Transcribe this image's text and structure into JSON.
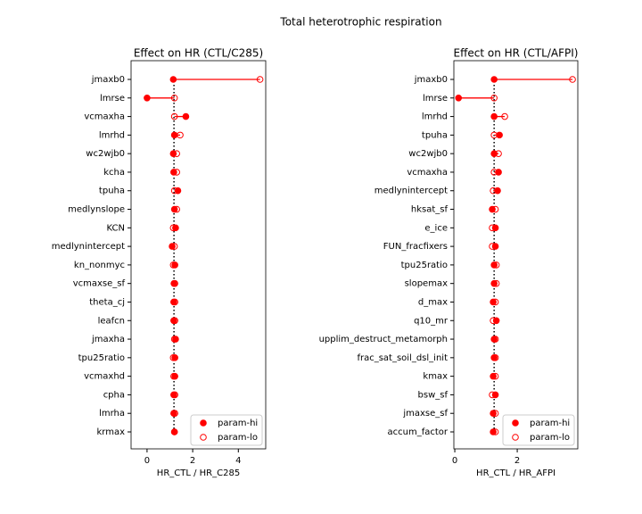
{
  "title": "Total heterotrophic respiration",
  "chart_data": [
    {
      "type": "dumbbell",
      "title": "Effect on HR (CTL/C285)",
      "xlabel": "HR_CTL / HR_C285",
      "categories": [
        "jmaxb0",
        "lmrse",
        "vcmaxha",
        "lmrhd",
        "wc2wjb0",
        "kcha",
        "tpuha",
        "medlynslope",
        "KCN",
        "medlynintercept",
        "kn_nonmyc",
        "vcmaxse_sf",
        "theta_cj",
        "leafcn",
        "jmaxha",
        "tpu25ratio",
        "vcmaxhd",
        "cpha",
        "lmrha",
        "krmax"
      ],
      "series": [
        {
          "name": "param-hi",
          "color": "#ff0000",
          "marker": "filled",
          "values": [
            1.15,
            0.0,
            1.7,
            1.2,
            1.15,
            1.17,
            1.35,
            1.2,
            1.25,
            1.1,
            1.22,
            1.18,
            1.17,
            1.17,
            1.25,
            1.22,
            1.22,
            1.17,
            1.17,
            1.2
          ]
        },
        {
          "name": "param-lo",
          "color": "#ff0000",
          "marker": "open",
          "values": [
            4.95,
            1.2,
            1.2,
            1.45,
            1.3,
            1.3,
            1.2,
            1.3,
            1.15,
            1.2,
            1.15,
            1.22,
            1.22,
            1.22,
            1.2,
            1.15,
            1.17,
            1.22,
            1.22,
            1.2
          ]
        }
      ],
      "reference": 1.18,
      "xlim": [
        -0.7,
        5.2
      ],
      "xticks": [
        0,
        2,
        4
      ],
      "legend": "lower right"
    },
    {
      "type": "dumbbell",
      "title": "Effect on HR (CTL/AFPI)",
      "xlabel": "HR_CTL / HR_AFPI",
      "categories": [
        "jmaxb0",
        "lmrse",
        "lmrhd",
        "tpuha",
        "wc2wjb0",
        "vcmaxha",
        "medlynintercept",
        "hksat_sf",
        "e_ice",
        "FUN_fracfixers",
        "tpu25ratio",
        "slopemax",
        "d_max",
        "q10_mr",
        "upplim_destruct_metamorph",
        "frac_sat_soil_dsl_init",
        "kmax",
        "bsw_sf",
        "jmaxse_sf",
        "accum_factor"
      ],
      "series": [
        {
          "name": "param-hi",
          "color": "#ff0000",
          "marker": "filled",
          "values": [
            1.26,
            0.12,
            1.26,
            1.43,
            1.26,
            1.4,
            1.37,
            1.2,
            1.3,
            1.3,
            1.26,
            1.26,
            1.23,
            1.33,
            1.26,
            1.26,
            1.23,
            1.3,
            1.23,
            1.23
          ]
        },
        {
          "name": "param-lo",
          "color": "#ff0000",
          "marker": "open",
          "values": [
            3.77,
            1.26,
            1.6,
            1.26,
            1.4,
            1.26,
            1.23,
            1.3,
            1.2,
            1.2,
            1.33,
            1.33,
            1.3,
            1.23,
            1.3,
            1.3,
            1.3,
            1.2,
            1.3,
            1.3
          ]
        }
      ],
      "reference": 1.26,
      "xlim": [
        -0.03,
        3.94
      ],
      "xticks": [
        0,
        2
      ],
      "legend": "lower right"
    }
  ]
}
